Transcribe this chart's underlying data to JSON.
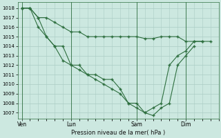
{
  "background_color": "#cce8e0",
  "grid_color": "#aaccc4",
  "line_color": "#2d6e3e",
  "title": "Pression niveau de la mer( hPa )",
  "ylim": [
    1006.4,
    1018.6
  ],
  "yticks": [
    1007,
    1008,
    1009,
    1010,
    1011,
    1012,
    1013,
    1014,
    1015,
    1016,
    1017,
    1018
  ],
  "xtick_labels": [
    "Ven",
    "Lun",
    "Sam",
    "Dim"
  ],
  "xtick_positions": [
    0,
    6,
    14,
    20
  ],
  "vline_positions": [
    0,
    6,
    14,
    20
  ],
  "xlim": [
    -0.5,
    24
  ],
  "s1_x": [
    0,
    1,
    2,
    3,
    4,
    5,
    6,
    7,
    8,
    9,
    10,
    11,
    12,
    13,
    14,
    15,
    16,
    17,
    18,
    19,
    20,
    21,
    22,
    23
  ],
  "s1_y": [
    1018,
    1018,
    1017,
    1017,
    1016.5,
    1016,
    1015.5,
    1015.5,
    1015,
    1015,
    1015,
    1015,
    1015,
    1015,
    1015,
    1014.8,
    1014.8,
    1015,
    1015,
    1015,
    1014.5,
    1014.5,
    1014.5,
    1014.5
  ],
  "s2_x": [
    0,
    1,
    2,
    3,
    4,
    5,
    6,
    7,
    8,
    9,
    10,
    11,
    12,
    13,
    14,
    15,
    16,
    17,
    18,
    19,
    20,
    21,
    22
  ],
  "s2_y": [
    1018,
    1018,
    1017,
    1015,
    1014,
    1014,
    1012,
    1012,
    1011,
    1011,
    1010.5,
    1010.5,
    1009.5,
    1008,
    1007.5,
    1007,
    1007.5,
    1008,
    1012,
    1013,
    1013.5,
    1014.5,
    1014.5
  ],
  "s3_x": [
    0,
    1,
    2,
    3,
    4,
    5,
    6,
    7,
    8,
    9,
    10,
    11,
    12,
    13,
    14,
    15,
    16,
    17,
    18,
    19,
    20,
    21
  ],
  "s3_y": [
    1018,
    1018,
    1016,
    1015,
    1014,
    1012.5,
    1012,
    1011.5,
    1011,
    1010.5,
    1010,
    1009.5,
    1009,
    1008,
    1008,
    1007,
    1006.7,
    1007.5,
    1008,
    1012,
    1013,
    1014
  ]
}
